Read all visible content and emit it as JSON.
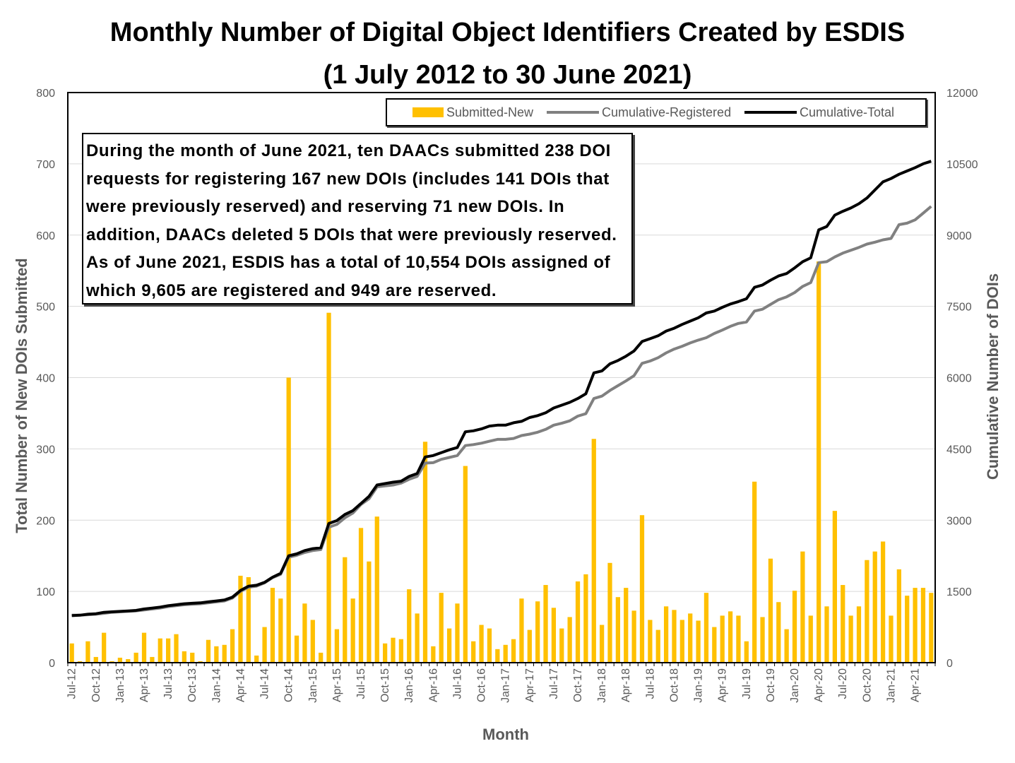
{
  "chart_data": {
    "type": "bar",
    "title": "Monthly Number of Digital Object Identifiers Created by ESDIS",
    "subtitle": "(1 July 2012 to 30 June 2021)",
    "xlabel": "Month",
    "ylabel": "Total Number of New DOIs Submitted",
    "y2label": "Cumulative Number of DOIs",
    "ylim": [
      0,
      800
    ],
    "y2lim": [
      0,
      12000
    ],
    "yticks": [
      "0",
      "100",
      "200",
      "300",
      "400",
      "500",
      "600",
      "700",
      "800"
    ],
    "y2ticks": [
      "0",
      "1500",
      "3000",
      "4500",
      "6000",
      "7500",
      "9000",
      "10500",
      "12000"
    ],
    "grid": true,
    "legend_position": "top-right",
    "annotation": [
      "During the month of June 2021, ten DAACs submitted 238 DOI",
      "requests for registering 167 new DOIs (includes 141 DOIs that",
      "were previously reserved) and reserving 71 new DOIs. In",
      "addition, DAACs deleted 5 DOIs that were previously reserved.",
      "As of June 2021, ESDIS has a total of 10,554 DOIs assigned of",
      "which 9,605 are registered and 949 are reserved."
    ],
    "x_tick_labels": [
      "Jul-12",
      "Oct-12",
      "Jan-13",
      "Apr-13",
      "Jul-13",
      "Oct-13",
      "Jan-14",
      "Apr-14",
      "Jul-14",
      "Oct-14",
      "Jan-15",
      "Apr-15",
      "Jul-15",
      "Oct-15",
      "Jan-16",
      "Apr-16",
      "Jul-16",
      "Oct-16",
      "Jan-17",
      "Apr-17",
      "Jul-17",
      "Oct-17",
      "Jan-18",
      "Apr-18",
      "Jul-18",
      "Oct-18",
      "Jan-19",
      "Apr-19",
      "Jul-19",
      "Oct-19",
      "Jan-20",
      "Apr-20",
      "Jul-20",
      "Oct-20",
      "Jan-21",
      "Apr-21"
    ],
    "series": [
      {
        "name": "Submitted-New",
        "axis": "left",
        "color": "#FFC000",
        "values": [
          27,
          2,
          30,
          8,
          42,
          2,
          7,
          5,
          14,
          42,
          8,
          34,
          34,
          40,
          16,
          14,
          2,
          32,
          23,
          25,
          47,
          122,
          120,
          10,
          50,
          105,
          90,
          400,
          38,
          83,
          60,
          14,
          491,
          47,
          148,
          90,
          189,
          142,
          205,
          27,
          35,
          33,
          103,
          69,
          310,
          23,
          98,
          48,
          83,
          276,
          30,
          53,
          48,
          19,
          25,
          33,
          90,
          46,
          86,
          109,
          77,
          48,
          64,
          114,
          124,
          314,
          53,
          140,
          92,
          105,
          73,
          207,
          60,
          46,
          79,
          74,
          60,
          69,
          59,
          98,
          50,
          66,
          72,
          66,
          30,
          254,
          64,
          146,
          85,
          47,
          101,
          156,
          66,
          563,
          79,
          213,
          109,
          66,
          79,
          144,
          156,
          170,
          66,
          131,
          94,
          105,
          105,
          98
        ]
      },
      {
        "name": "Cumulative-Registered",
        "axis": "right",
        "color": "#808080",
        "values": [
          1000,
          1000,
          1010,
          1020,
          1040,
          1060,
          1070,
          1080,
          1090,
          1110,
          1130,
          1150,
          1180,
          1200,
          1220,
          1230,
          1240,
          1260,
          1280,
          1300,
          1360,
          1500,
          1590,
          1610,
          1680,
          1790,
          1860,
          2220,
          2260,
          2320,
          2360,
          2380,
          2850,
          2910,
          3050,
          3150,
          3330,
          3450,
          3700,
          3720,
          3740,
          3780,
          3860,
          3920,
          4200,
          4210,
          4280,
          4320,
          4360,
          4570,
          4590,
          4620,
          4660,
          4700,
          4700,
          4720,
          4780,
          4810,
          4850,
          4910,
          5000,
          5040,
          5090,
          5190,
          5240,
          5560,
          5610,
          5730,
          5830,
          5930,
          6040,
          6300,
          6350,
          6420,
          6520,
          6600,
          6660,
          6730,
          6790,
          6840,
          6930,
          7000,
          7080,
          7140,
          7170,
          7400,
          7440,
          7540,
          7640,
          7700,
          7790,
          7920,
          8000,
          8420,
          8440,
          8540,
          8620,
          8680,
          8740,
          8810,
          8850,
          8900,
          8930,
          9220,
          9250,
          9320,
          9460,
          9605
        ]
      },
      {
        "name": "Cumulative-Total",
        "axis": "right",
        "color": "#000000",
        "values": [
          990,
          1000,
          1020,
          1030,
          1060,
          1070,
          1080,
          1090,
          1100,
          1130,
          1150,
          1170,
          1200,
          1220,
          1240,
          1250,
          1260,
          1280,
          1300,
          1320,
          1380,
          1520,
          1610,
          1630,
          1690,
          1800,
          1880,
          2250,
          2290,
          2360,
          2400,
          2420,
          2930,
          2990,
          3120,
          3200,
          3350,
          3500,
          3740,
          3770,
          3800,
          3820,
          3920,
          3980,
          4330,
          4360,
          4420,
          4480,
          4530,
          4860,
          4880,
          4920,
          4980,
          5000,
          5000,
          5050,
          5080,
          5160,
          5200,
          5260,
          5360,
          5420,
          5480,
          5560,
          5660,
          6100,
          6140,
          6290,
          6360,
          6450,
          6560,
          6760,
          6820,
          6880,
          6980,
          7040,
          7120,
          7190,
          7260,
          7360,
          7400,
          7480,
          7550,
          7600,
          7660,
          7900,
          7950,
          8050,
          8140,
          8190,
          8310,
          8440,
          8520,
          9110,
          9180,
          9420,
          9500,
          9570,
          9660,
          9780,
          9950,
          10120,
          10190,
          10280,
          10350,
          10420,
          10500,
          10554
        ]
      }
    ]
  }
}
